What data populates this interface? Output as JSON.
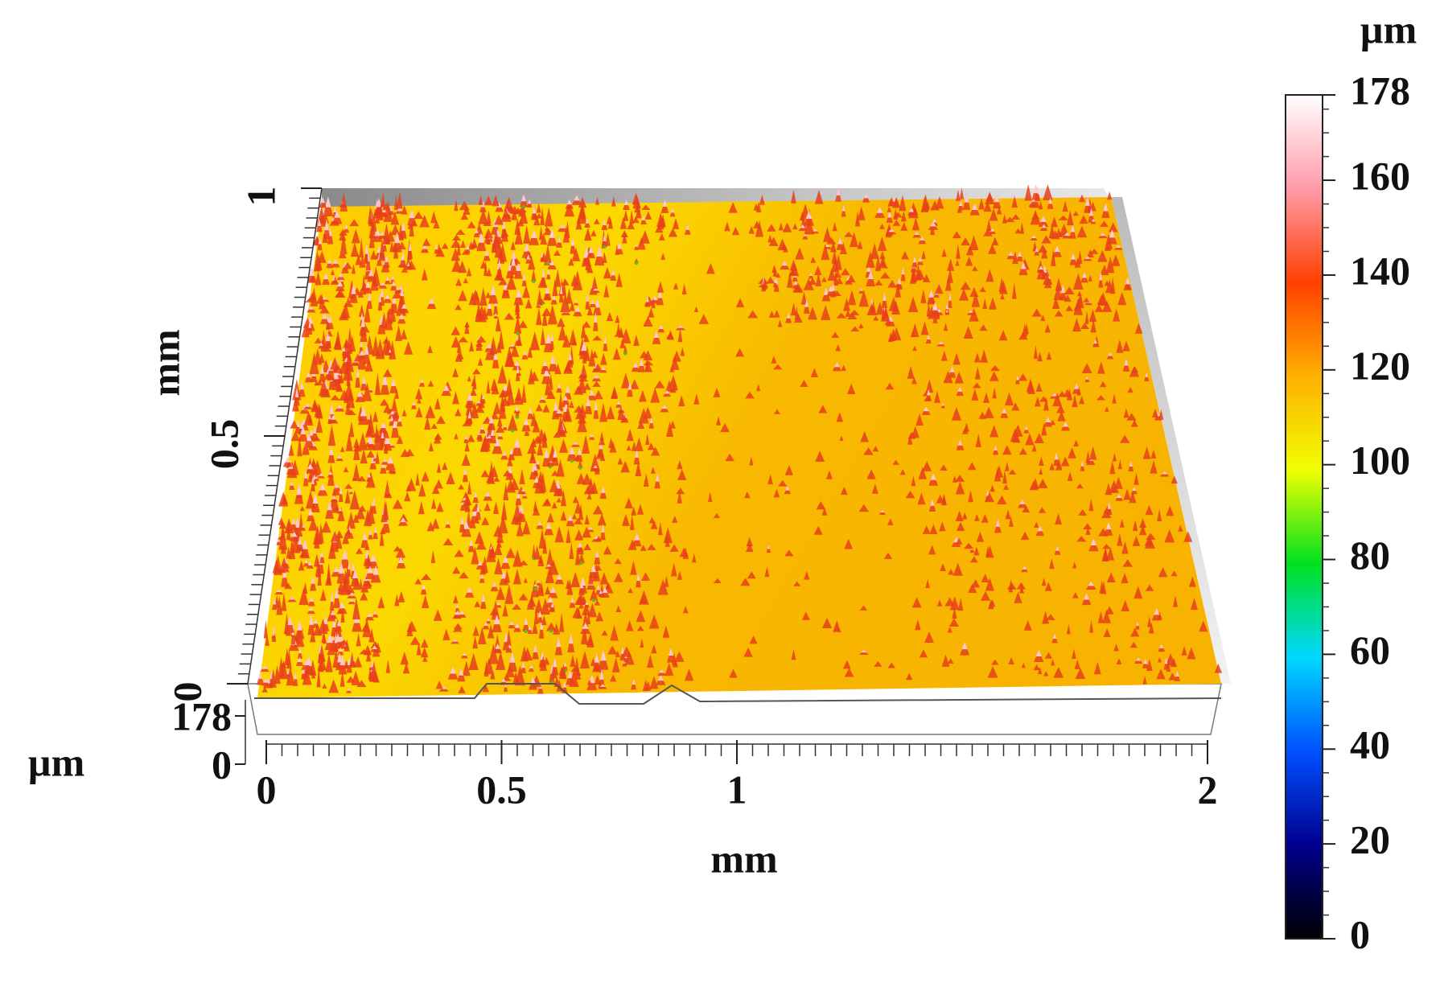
{
  "chart_data": {
    "type": "surface",
    "x_label": "mm",
    "y_label": "mm",
    "z_label": "µm",
    "colorbar_label": "µm",
    "xlim": [
      0,
      2
    ],
    "xticks": [
      0,
      0.5,
      1,
      2
    ],
    "ylim": [
      0,
      1
    ],
    "yticks": [
      0,
      0.5,
      1
    ],
    "zlim": [
      0,
      178
    ],
    "zticks": [
      0,
      178
    ],
    "colorbar_lim": [
      0,
      178
    ],
    "colorbar_ticks": [
      0,
      20,
      40,
      60,
      80,
      100,
      120,
      140,
      160,
      178
    ],
    "colormap": [
      "#000000",
      "#00008f",
      "#0050ff",
      "#00d8ff",
      "#00e020",
      "#f0ff00",
      "#ffb000",
      "#ff4000",
      "#ff9aa8",
      "#ffffff"
    ]
  }
}
